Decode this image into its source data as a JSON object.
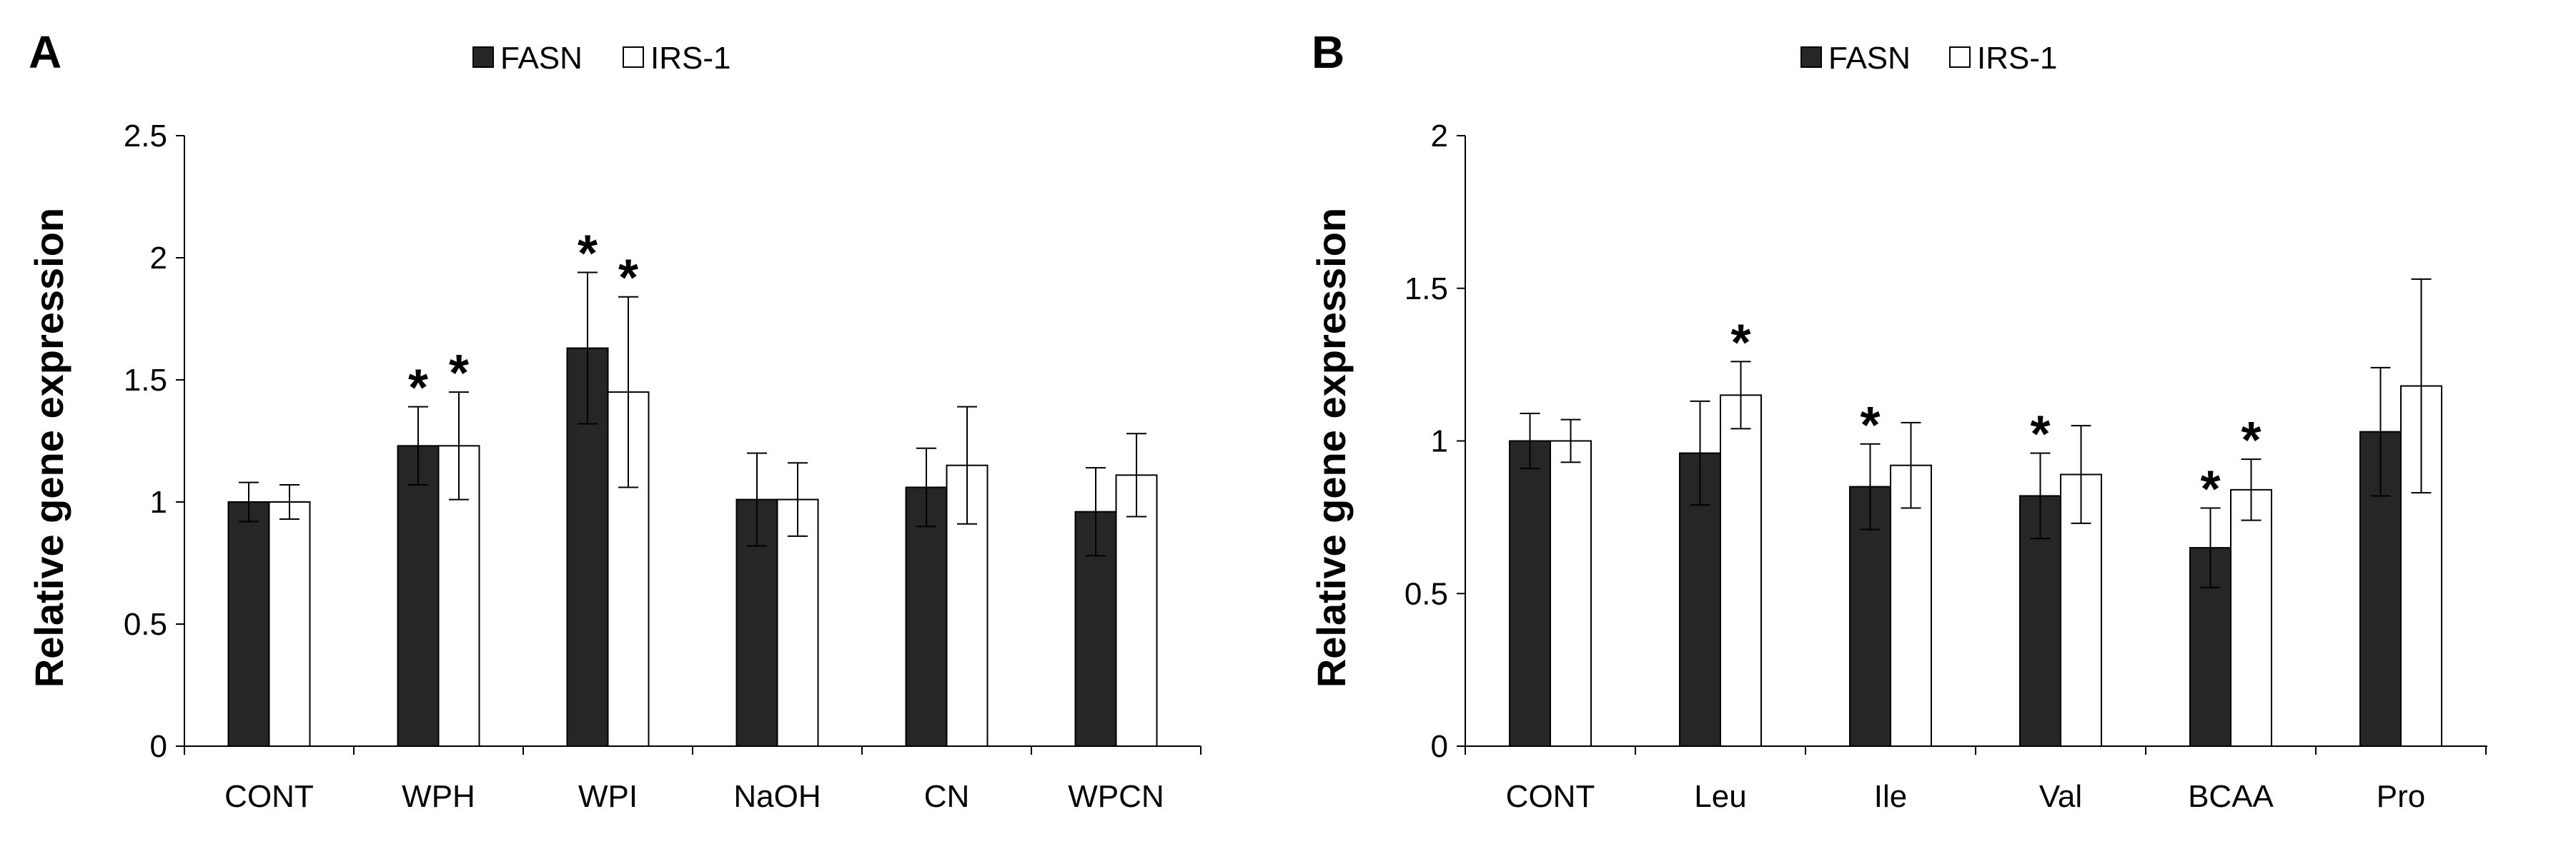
{
  "colors": {
    "FASN": "#262626",
    "IRS-1": "#ffffff",
    "outline": "#000000"
  },
  "chart_data": [
    {
      "panel": "A",
      "type": "bar",
      "ylabel": "Relative gene expression",
      "ylim": [
        0,
        2.5
      ],
      "yticks": [
        0,
        0.5,
        1,
        1.5,
        2,
        2.5
      ],
      "ytick_labels": [
        "0",
        "0.5",
        "1",
        "1.5",
        "2",
        "2.5"
      ],
      "legend": [
        "FASN",
        "IRS-1"
      ],
      "legend_position": "top-center",
      "categories": [
        "CONT",
        "WPH",
        "WPI",
        "NaOH",
        "CN",
        "WPCN"
      ],
      "series": [
        {
          "name": "FASN",
          "values": [
            1.0,
            1.23,
            1.63,
            1.01,
            1.06,
            0.96
          ],
          "errors": [
            0.08,
            0.16,
            0.31,
            0.19,
            0.16,
            0.18
          ],
          "significant": [
            false,
            true,
            true,
            false,
            false,
            false
          ]
        },
        {
          "name": "IRS-1",
          "values": [
            1.0,
            1.23,
            1.45,
            1.01,
            1.15,
            1.11
          ],
          "errors": [
            0.07,
            0.22,
            0.39,
            0.15,
            0.24,
            0.17
          ],
          "significant": [
            false,
            true,
            true,
            false,
            false,
            false
          ]
        }
      ],
      "significance_marker": "*"
    },
    {
      "panel": "B",
      "type": "bar",
      "ylabel": "Relative gene expression",
      "ylim": [
        0,
        2
      ],
      "yticks": [
        0,
        0.5,
        1,
        1.5,
        2
      ],
      "ytick_labels": [
        "0",
        "0.5",
        "1",
        "1.5",
        "2"
      ],
      "legend": [
        "FASN",
        "IRS-1"
      ],
      "legend_position": "top-center",
      "categories": [
        "CONT",
        "Leu",
        "Ile",
        "Val",
        "BCAA",
        "Pro"
      ],
      "series": [
        {
          "name": "FASN",
          "values": [
            1.0,
            0.96,
            0.85,
            0.82,
            0.65,
            1.03
          ],
          "errors": [
            0.09,
            0.17,
            0.14,
            0.14,
            0.13,
            0.21
          ],
          "significant": [
            false,
            false,
            true,
            true,
            true,
            false
          ]
        },
        {
          "name": "IRS-1",
          "values": [
            1.0,
            1.15,
            0.92,
            0.89,
            0.84,
            1.18
          ],
          "errors": [
            0.07,
            0.11,
            0.14,
            0.16,
            0.1,
            0.35
          ],
          "significant": [
            false,
            true,
            false,
            false,
            true,
            false
          ]
        }
      ],
      "significance_marker": "*"
    }
  ]
}
